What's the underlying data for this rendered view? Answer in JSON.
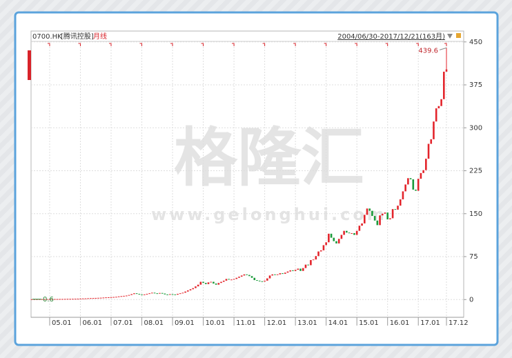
{
  "chart_data": {
    "type": "candlestick",
    "code": "0700.HK",
    "name": "[腾讯控股]",
    "period": "月线",
    "range_text": "2004/06/30-2017/12/21(163月)",
    "watermark": "格隆汇",
    "watermark_url": "www.gelonghui.com",
    "up_color": "#e3242b",
    "down_color": "#1a9a3a",
    "categories": [
      null,
      null,
      null,
      null,
      null,
      null,
      null,
      "05.01",
      null,
      null,
      null,
      null,
      null,
      null,
      null,
      null,
      null,
      null,
      null,
      "06.01",
      null,
      null,
      null,
      null,
      null,
      null,
      null,
      null,
      null,
      null,
      null,
      "07.01",
      null,
      null,
      null,
      null,
      null,
      null,
      null,
      null,
      null,
      null,
      null,
      "08.01",
      null,
      null,
      null,
      null,
      null,
      null,
      null,
      null,
      null,
      null,
      null,
      "09.01",
      null,
      null,
      null,
      null,
      null,
      null,
      null,
      null,
      null,
      null,
      null,
      "10.01",
      null,
      null,
      null,
      null,
      null,
      null,
      null,
      null,
      null,
      null,
      null,
      "11.01",
      null,
      null,
      null,
      null,
      null,
      null,
      null,
      null,
      null,
      null,
      null,
      "12.01",
      null,
      null,
      null,
      null,
      null,
      null,
      null,
      null,
      null,
      null,
      null,
      "13.01",
      null,
      null,
      null,
      null,
      null,
      null,
      null,
      null,
      null,
      null,
      null,
      "14.01",
      null,
      null,
      null,
      null,
      null,
      null,
      null,
      null,
      null,
      null,
      null,
      "15.01",
      null,
      null,
      null,
      null,
      null,
      null,
      null,
      null,
      null,
      null,
      null,
      "16.01",
      null,
      null,
      null,
      null,
      null,
      null,
      null,
      null,
      null,
      null,
      null,
      "17.01",
      null,
      null,
      null,
      null,
      null,
      null,
      null,
      null,
      null,
      null,
      "17.12"
    ],
    "close": [
      0.6,
      0.6,
      0.6,
      0.7,
      0.7,
      0.7,
      0.8,
      0.8,
      0.9,
      0.9,
      0.9,
      1.0,
      1.0,
      1.1,
      1.2,
      1.2,
      1.3,
      1.4,
      1.5,
      1.7,
      1.9,
      2.0,
      2.3,
      2.5,
      2.6,
      2.8,
      3.0,
      3.2,
      3.5,
      3.8,
      4.0,
      4.2,
      4.5,
      4.8,
      5.5,
      6.0,
      6.5,
      7.0,
      8.0,
      9.5,
      11.0,
      10.0,
      9.0,
      8.5,
      9.0,
      10.0,
      11.0,
      12.0,
      11.0,
      10.5,
      11.5,
      10.5,
      9.0,
      8.5,
      9.5,
      9.0,
      8.5,
      10.0,
      11.0,
      12.0,
      14.0,
      16.0,
      18.0,
      20.0,
      23.0,
      26.0,
      31.0,
      29.0,
      27.0,
      30.0,
      31.0,
      28.0,
      26.0,
      29.0,
      31.0,
      33.0,
      36.0,
      35.0,
      35.0,
      36.0,
      38.0,
      40.0,
      42.0,
      44.0,
      43.0,
      41.0,
      38.0,
      34.0,
      33.0,
      32.0,
      31.5,
      33.0,
      37.0,
      42.0,
      44.0,
      43.0,
      44.0,
      46.0,
      45.0,
      47.0,
      49.0,
      51.0,
      50.0,
      52.0,
      54.0,
      50.0,
      55.0,
      61.0,
      60.0,
      69.0,
      70.0,
      76.0,
      84.0,
      86.0,
      95.0,
      100.0,
      115.0,
      108.0,
      102.0,
      98.0,
      106.0,
      113.0,
      120.0,
      117.0,
      116.0,
      116.0,
      113.0,
      120.0,
      129.0,
      133.0,
      148.0,
      159.0,
      155.0,
      146.0,
      138.0,
      130.0,
      147.0,
      150.0,
      152.0,
      140.0,
      142.0,
      158.0,
      157.0,
      164.0,
      175.0,
      189.0,
      201.0,
      212.0,
      210.0,
      192.0,
      190.0,
      211.0,
      221.0,
      226.0,
      246.0,
      272.0,
      280.0,
      311.0,
      334.0,
      338.0,
      350.0,
      398.0,
      402.0
    ],
    "open": [
      0.6,
      0.6,
      0.6,
      0.6,
      0.7,
      0.7,
      0.7,
      0.8,
      0.8,
      0.9,
      0.9,
      0.9,
      1.0,
      1.0,
      1.1,
      1.2,
      1.2,
      1.3,
      1.4,
      1.5,
      1.7,
      1.9,
      2.0,
      2.3,
      2.5,
      2.6,
      2.8,
      3.0,
      3.2,
      3.5,
      3.8,
      4.0,
      4.2,
      4.5,
      4.8,
      5.5,
      6.0,
      6.5,
      7.0,
      8.0,
      9.5,
      11.0,
      10.0,
      9.0,
      8.5,
      9.0,
      10.0,
      11.0,
      12.0,
      11.0,
      10.5,
      11.5,
      10.5,
      9.0,
      8.5,
      9.5,
      9.0,
      8.5,
      10.0,
      11.0,
      12.0,
      14.0,
      16.0,
      18.0,
      20.0,
      23.0,
      26.0,
      31.0,
      29.0,
      27.0,
      30.0,
      31.0,
      28.0,
      26.0,
      29.0,
      31.0,
      33.0,
      36.0,
      35.0,
      35.0,
      36.0,
      38.0,
      40.0,
      42.0,
      44.0,
      43.0,
      41.0,
      38.0,
      34.0,
      33.0,
      32.0,
      31.5,
      33.0,
      37.0,
      42.0,
      44.0,
      43.0,
      44.0,
      46.0,
      45.0,
      47.0,
      49.0,
      51.0,
      50.0,
      52.0,
      54.0,
      50.0,
      55.0,
      61.0,
      60.0,
      69.0,
      70.0,
      76.0,
      84.0,
      86.0,
      95.0,
      100.0,
      115.0,
      108.0,
      102.0,
      98.0,
      106.0,
      113.0,
      120.0,
      117.0,
      116.0,
      116.0,
      113.0,
      120.0,
      129.0,
      133.0,
      148.0,
      159.0,
      155.0,
      146.0,
      138.0,
      130.0,
      147.0,
      150.0,
      152.0,
      140.0,
      142.0,
      158.0,
      157.0,
      164.0,
      175.0,
      189.0,
      201.0,
      212.0,
      210.0,
      192.0,
      190.0,
      211.0,
      221.0,
      226.0,
      246.0,
      272.0,
      280.0,
      311.0,
      334.0,
      338.0,
      350.0,
      398.0
    ],
    "annotations": [
      {
        "value": 439.6,
        "index": 162,
        "color": "#c0272d"
      },
      {
        "value": 0.6,
        "index": 0,
        "color": "#2a8a3a"
      }
    ],
    "ylim": [
      -31,
      469
    ],
    "yticks": [
      0,
      75,
      150,
      225,
      300,
      375,
      450
    ],
    "grid": true
  }
}
